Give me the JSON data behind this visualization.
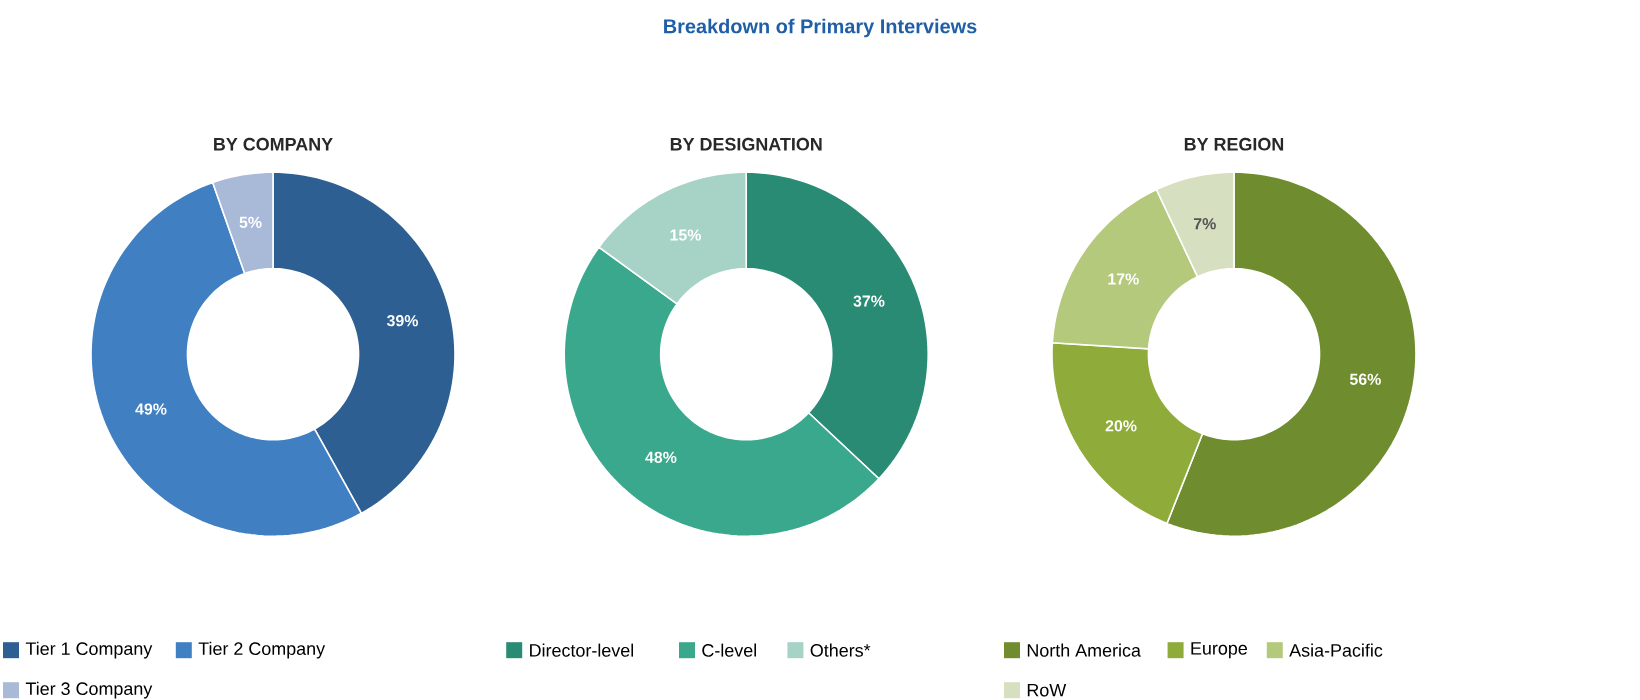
{
  "chart_data": [
    {
      "type": "donut",
      "subtitle": "BY COMPANY",
      "categories": [
        "Tier 1 Company",
        "Tier 2 Company",
        "Tier 3 Company"
      ],
      "values": [
        39,
        49,
        5
      ],
      "value_labels": [
        "39%",
        "49%",
        "5%"
      ],
      "colors": [
        "#2e5f93",
        "#3f7fc2",
        "#a9b9d8"
      ],
      "legend": "bottom"
    },
    {
      "type": "donut",
      "title": "Breakdown of Primary Interviews",
      "subtitle": "BY DESIGNATION",
      "categories": [
        "Director-level",
        "C-level",
        "Others*"
      ],
      "values": [
        37,
        48,
        15
      ],
      "value_labels": [
        "37%",
        "48%",
        "15%"
      ],
      "colors": [
        "#2a8b74",
        "#3aa88d",
        "#a6d3c6"
      ],
      "legend": "bottom"
    },
    {
      "type": "donut",
      "subtitle": "BY REGION",
      "categories": [
        "North America",
        "Europe",
        "Asia-Pacific",
        "RoW"
      ],
      "values": [
        56,
        20,
        17,
        7
      ],
      "value_labels": [
        "56%",
        "20%",
        "17%",
        "7%"
      ],
      "colors": [
        "#6f8d2e",
        "#8fab3a",
        "#b5c97d",
        "#d6dfc0"
      ],
      "legend": "bottom"
    }
  ]
}
